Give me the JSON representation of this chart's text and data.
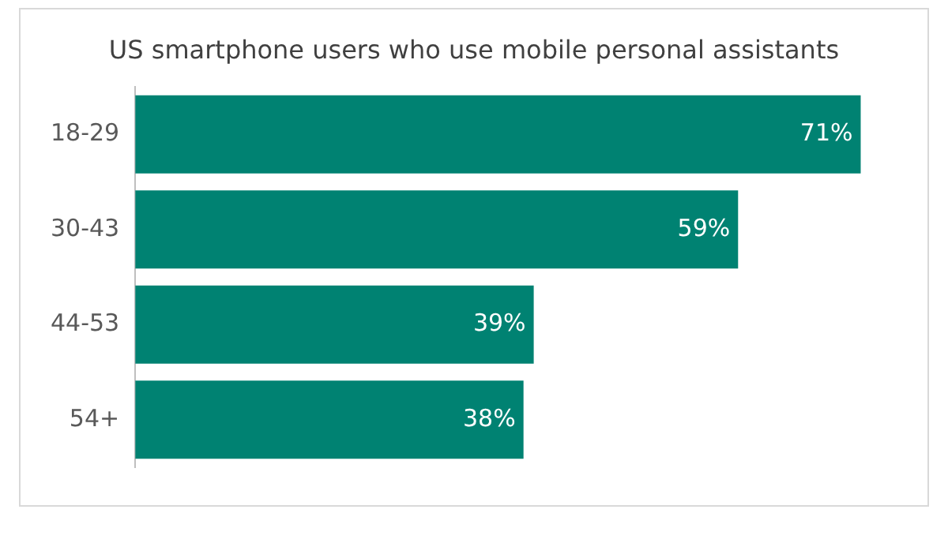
{
  "chart_data": {
    "type": "bar",
    "orientation": "horizontal",
    "title": "US smartphone users who use mobile personal assistants",
    "categories": [
      "18-29",
      "30-43",
      "44-53",
      "54+"
    ],
    "values": [
      71,
      59,
      39,
      38
    ],
    "value_labels": [
      "71%",
      "59%",
      "39%",
      "38%"
    ],
    "color": "#008272"
  }
}
